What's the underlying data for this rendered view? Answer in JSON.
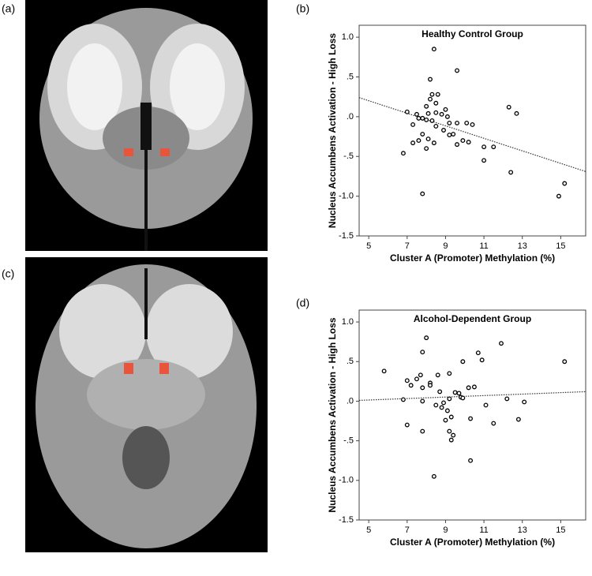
{
  "panel_labels": [
    "(a)",
    "(b)",
    "(c)",
    "(d)"
  ],
  "chart_data": [
    {
      "type": "scatter",
      "title": "Healthy Control Group",
      "xlabel": "Cluster A (Promoter) Methylation (%)",
      "ylabel": "Nucleus Accumbens Activation - High Loss",
      "color": "#000000",
      "x": [
        8.4,
        9.6,
        8.2,
        8.3,
        8.6,
        8.2,
        8.5,
        8.0,
        7.0,
        7.5,
        8.1,
        8.5,
        9.0,
        8.8,
        9.1,
        7.6,
        8.0,
        8.3,
        7.8,
        9.2,
        7.3,
        9.6,
        10.1,
        10.4,
        8.5,
        8.9,
        9.2,
        9.4,
        7.8,
        8.1,
        7.6,
        7.3,
        9.9,
        10.2,
        8.4,
        9.6,
        11.0,
        11.5,
        8.0,
        6.8,
        11.0,
        12.4,
        7.8,
        12.3,
        12.7,
        15.2,
        14.9
      ],
      "values": [
        0.85,
        0.58,
        0.47,
        0.28,
        0.28,
        0.22,
        0.17,
        0.13,
        0.06,
        0.03,
        0.04,
        0.05,
        0.09,
        0.03,
        0.0,
        -0.02,
        -0.04,
        -0.05,
        -0.02,
        -0.08,
        -0.1,
        -0.08,
        -0.08,
        -0.1,
        -0.12,
        -0.17,
        -0.23,
        -0.22,
        -0.22,
        -0.28,
        -0.3,
        -0.33,
        -0.3,
        -0.32,
        -0.33,
        -0.35,
        -0.38,
        -0.38,
        -0.4,
        -0.46,
        -0.55,
        -0.7,
        -0.97,
        0.12,
        0.04,
        -0.84,
        -1.0
      ],
      "fit_line": {
        "x": [
          4.5,
          16.3
        ],
        "values": [
          0.24,
          -0.69
        ]
      },
      "xlim": [
        4.5,
        16.3
      ],
      "ylim": [
        -1.5,
        1.15
      ],
      "xticks": [
        5,
        7,
        9,
        11,
        13,
        15
      ],
      "yticks": [
        {
          "value": 1.0,
          "label": "1.0"
        },
        {
          "value": 0.5,
          "label": ".5"
        },
        {
          "value": 0.0,
          "label": ".0"
        },
        {
          "value": -0.5,
          "label": "-.5"
        },
        {
          "value": -1.0,
          "label": "-1.0"
        },
        {
          "value": -1.5,
          "label": "-1.5"
        }
      ]
    },
    {
      "type": "scatter",
      "title": "Alcohol-Dependent Group",
      "xlabel": "Cluster A (Promoter) Methylation (%)",
      "ylabel": "Nucleus Accumbens Activation - High Loss",
      "color": "#000000",
      "x": [
        8.0,
        11.9,
        10.7,
        7.8,
        10.9,
        15.2,
        9.9,
        5.8,
        9.2,
        8.6,
        7.7,
        7.0,
        7.5,
        8.2,
        7.2,
        10.5,
        10.2,
        8.2,
        7.8,
        9.5,
        8.7,
        9.7,
        9.8,
        9.9,
        12.2,
        6.8,
        9.2,
        7.8,
        8.9,
        13.1,
        8.5,
        11.1,
        8.8,
        9.1,
        9.3,
        10.3,
        9.0,
        12.8,
        11.5,
        7.0,
        7.8,
        9.2,
        9.4,
        9.3,
        10.3,
        8.4
      ],
      "values": [
        0.8,
        0.73,
        0.61,
        0.62,
        0.52,
        0.5,
        0.5,
        0.38,
        0.35,
        0.33,
        0.33,
        0.26,
        0.28,
        0.23,
        0.2,
        0.18,
        0.17,
        0.2,
        0.17,
        0.11,
        0.12,
        0.1,
        0.05,
        0.04,
        0.03,
        0.02,
        0.03,
        0.0,
        -0.02,
        -0.01,
        -0.05,
        -0.05,
        -0.08,
        -0.12,
        -0.2,
        -0.22,
        -0.24,
        -0.23,
        -0.28,
        -0.3,
        -0.38,
        -0.38,
        -0.43,
        -0.49,
        -0.75,
        -0.95
      ],
      "fit_line": {
        "x": [
          4.5,
          16.3
        ],
        "values": [
          0.01,
          0.12
        ]
      },
      "xlim": [
        4.5,
        16.3
      ],
      "ylim": [
        -1.5,
        1.15
      ],
      "xticks": [
        5,
        7,
        9,
        11,
        13,
        15
      ],
      "yticks": [
        {
          "value": 1.0,
          "label": "1.0"
        },
        {
          "value": 0.5,
          "label": ".5"
        },
        {
          "value": 0.0,
          "label": ".0"
        },
        {
          "value": -0.5,
          "label": "-.5"
        },
        {
          "value": -1.0,
          "label": "-1.0"
        },
        {
          "value": -1.5,
          "label": "-1.5"
        }
      ]
    }
  ]
}
